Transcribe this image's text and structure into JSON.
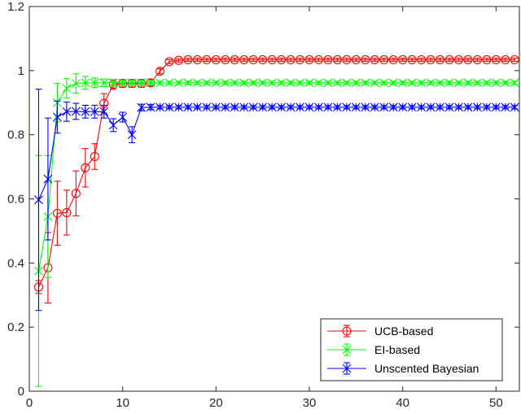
{
  "chart_data": {
    "type": "line",
    "title": "",
    "xlabel": "",
    "ylabel": "",
    "xlim": [
      0,
      52.5
    ],
    "ylim": [
      0,
      1.2
    ],
    "xticks": [
      0,
      10,
      20,
      30,
      40,
      50
    ],
    "yticks": [
      0,
      0.2,
      0.4,
      0.6,
      0.8,
      1,
      1.2
    ],
    "xtick_labels": [
      "0",
      "10",
      "20",
      "30",
      "40",
      "50"
    ],
    "ytick_labels": [
      "0",
      "0.2",
      "0.4",
      "0.6",
      "0.8",
      "1",
      "1.2"
    ],
    "grid": false,
    "legend_position": "bottom-right",
    "series": [
      {
        "name": "UCB-based",
        "color": "#ff0000",
        "marker": "circle",
        "x": [
          1,
          2,
          3,
          4,
          5,
          6,
          7,
          8,
          9,
          10,
          11,
          12,
          13,
          14,
          15,
          16,
          17,
          18,
          19,
          20,
          21,
          22,
          23,
          24,
          25,
          26,
          27,
          28,
          29,
          30,
          31,
          32,
          33,
          34,
          35,
          36,
          37,
          38,
          39,
          40,
          41,
          42,
          43,
          44,
          45,
          46,
          47,
          48,
          49,
          50,
          51,
          52
        ],
        "y": [
          0.325,
          0.385,
          0.555,
          0.557,
          0.617,
          0.697,
          0.732,
          0.898,
          0.957,
          0.96,
          0.96,
          0.96,
          0.962,
          0.998,
          1.028,
          1.032,
          1.034,
          1.034,
          1.034,
          1.034,
          1.034,
          1.034,
          1.034,
          1.034,
          1.034,
          1.034,
          1.034,
          1.034,
          1.034,
          1.034,
          1.034,
          1.034,
          1.034,
          1.034,
          1.034,
          1.034,
          1.034,
          1.034,
          1.034,
          1.034,
          1.034,
          1.034,
          1.034,
          1.034,
          1.034,
          1.034,
          1.034,
          1.034,
          1.034,
          1.034,
          1.034,
          1.034
        ],
        "err": [
          0.02,
          0.11,
          0.1,
          0.07,
          0.07,
          0.06,
          0.04,
          0.03,
          0.015,
          0.012,
          0.012,
          0.012,
          0.01,
          0.008,
          0.006,
          0.005,
          0.005,
          0.005,
          0.005,
          0.005,
          0.005,
          0.005,
          0.005,
          0.005,
          0.005,
          0.005,
          0.005,
          0.005,
          0.005,
          0.005,
          0.005,
          0.005,
          0.005,
          0.005,
          0.005,
          0.005,
          0.005,
          0.005,
          0.005,
          0.005,
          0.005,
          0.005,
          0.005,
          0.005,
          0.005,
          0.005,
          0.005,
          0.005,
          0.005,
          0.005,
          0.005,
          0.005
        ]
      },
      {
        "name": "EI-based",
        "color": "#00ff00",
        "marker": "x",
        "x": [
          1,
          2,
          3,
          4,
          5,
          6,
          7,
          8,
          9,
          10,
          11,
          12,
          13,
          14,
          15,
          16,
          17,
          18,
          19,
          20,
          21,
          22,
          23,
          24,
          25,
          26,
          27,
          28,
          29,
          30,
          31,
          32,
          33,
          34,
          35,
          36,
          37,
          38,
          39,
          40,
          41,
          42,
          43,
          44,
          45,
          46,
          47,
          48,
          49,
          50,
          51,
          52
        ],
        "y": [
          0.375,
          0.545,
          0.9,
          0.945,
          0.96,
          0.962,
          0.962,
          0.962,
          0.962,
          0.962,
          0.962,
          0.962,
          0.962,
          0.962,
          0.962,
          0.962,
          0.962,
          0.962,
          0.962,
          0.962,
          0.962,
          0.962,
          0.962,
          0.962,
          0.962,
          0.962,
          0.962,
          0.962,
          0.962,
          0.962,
          0.962,
          0.962,
          0.962,
          0.962,
          0.962,
          0.962,
          0.962,
          0.962,
          0.962,
          0.962,
          0.962,
          0.962,
          0.962,
          0.962,
          0.962,
          0.962,
          0.962,
          0.962,
          0.962,
          0.962,
          0.962,
          0.962
        ],
        "err": [
          0.36,
          0.19,
          0.06,
          0.03,
          0.03,
          0.02,
          0.015,
          0.012,
          0.01,
          0.008,
          0.008,
          0.008,
          0.008,
          0.005,
          0.005,
          0.005,
          0.005,
          0.005,
          0.005,
          0.005,
          0.005,
          0.005,
          0.005,
          0.005,
          0.005,
          0.005,
          0.005,
          0.005,
          0.005,
          0.005,
          0.005,
          0.005,
          0.005,
          0.005,
          0.005,
          0.005,
          0.005,
          0.005,
          0.005,
          0.005,
          0.005,
          0.005,
          0.005,
          0.005,
          0.005,
          0.005,
          0.005,
          0.005,
          0.005,
          0.005,
          0.005,
          0.005
        ]
      },
      {
        "name": "Unscented Bayesian",
        "color": "#0000ff",
        "marker": "asterisk",
        "x": [
          1,
          2,
          3,
          4,
          5,
          6,
          7,
          8,
          9,
          10,
          11,
          12,
          13,
          14,
          15,
          16,
          17,
          18,
          19,
          20,
          21,
          22,
          23,
          24,
          25,
          26,
          27,
          28,
          29,
          30,
          31,
          32,
          33,
          34,
          35,
          36,
          37,
          38,
          39,
          40,
          41,
          42,
          43,
          44,
          45,
          46,
          47,
          48,
          49,
          50,
          51,
          52
        ],
        "y": [
          0.597,
          0.662,
          0.855,
          0.872,
          0.873,
          0.872,
          0.872,
          0.872,
          0.83,
          0.855,
          0.8,
          0.885,
          0.886,
          0.886,
          0.886,
          0.886,
          0.886,
          0.886,
          0.886,
          0.886,
          0.886,
          0.886,
          0.886,
          0.886,
          0.886,
          0.886,
          0.886,
          0.886,
          0.886,
          0.886,
          0.886,
          0.886,
          0.886,
          0.886,
          0.886,
          0.886,
          0.886,
          0.886,
          0.886,
          0.886,
          0.886,
          0.886,
          0.886,
          0.886,
          0.886,
          0.886,
          0.886,
          0.886,
          0.886,
          0.886,
          0.886,
          0.886
        ],
        "err": [
          0.345,
          0.19,
          0.05,
          0.03,
          0.025,
          0.02,
          0.02,
          0.02,
          0.02,
          0.015,
          0.025,
          0.01,
          0.008,
          0.005,
          0.005,
          0.005,
          0.005,
          0.005,
          0.005,
          0.005,
          0.005,
          0.005,
          0.005,
          0.005,
          0.005,
          0.005,
          0.005,
          0.005,
          0.005,
          0.005,
          0.005,
          0.005,
          0.005,
          0.005,
          0.005,
          0.005,
          0.005,
          0.005,
          0.005,
          0.005,
          0.005,
          0.005,
          0.005,
          0.005,
          0.005,
          0.005,
          0.005,
          0.005,
          0.005,
          0.005,
          0.005,
          0.005
        ]
      }
    ]
  }
}
